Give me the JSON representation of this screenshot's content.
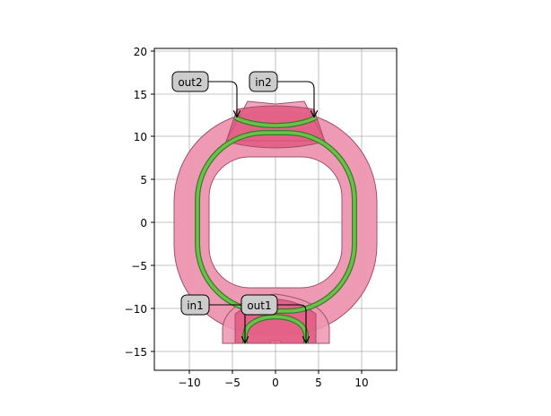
{
  "plot": {
    "x_ticks": [
      "−10",
      "−5",
      "0",
      "5",
      "10"
    ],
    "y_ticks": [
      "20",
      "15",
      "10",
      "5",
      "0",
      "−5",
      "−10",
      "−15"
    ],
    "xlim": [
      -14,
      14
    ],
    "ylim": [
      -17.3,
      20.3
    ],
    "grid": true
  },
  "ports": {
    "out2": "out2",
    "in2": "in2",
    "in1": "in1",
    "out1": "out1"
  },
  "colors": {
    "cladding": "#ee95b0",
    "coupler": "#e4607f",
    "waveguide": "#6cc04a",
    "waveguide_edge": "#3a7a2a",
    "label_box": "#cccccc"
  }
}
